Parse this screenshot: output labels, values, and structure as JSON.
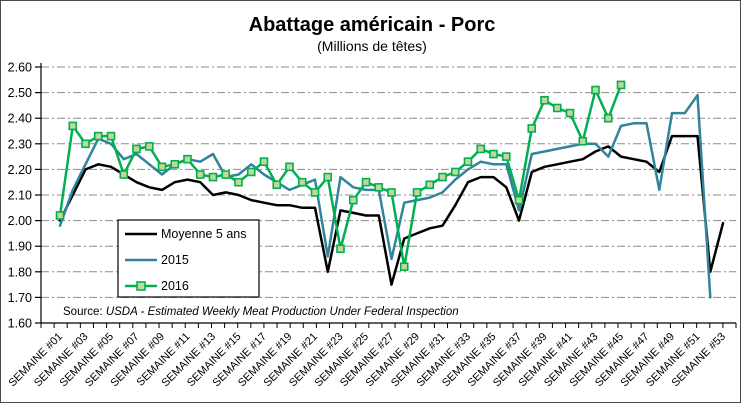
{
  "title": "Abattage américain - Porc",
  "subtitle": "(Millions de têtes)",
  "source": {
    "prefix": "Source: ",
    "text": "USDA - Estimated Weekly Meat Production Under Federal Inspection"
  },
  "colors": {
    "average": "#000000",
    "y2015": "#31849B",
    "y2016": "#00B050",
    "marker_fill": "#C3D69B",
    "grid": "#8C8C8C",
    "axis": "#000000",
    "legend_border": "#000000",
    "background": "#FFFFFF"
  },
  "chart_data": {
    "type": "line",
    "title": "Abattage américain - Porc",
    "subtitle": "(Millions de têtes)",
    "ylim": [
      1.6,
      2.6
    ],
    "y_tick_step": 0.1,
    "n_points": 53,
    "grid": "horizontal dash-dot",
    "legend_position": "inside left",
    "x_tick_labels": [
      "SEMAINE #01",
      "SEMAINE #03",
      "SEMAINE #05",
      "SEMAINE #07",
      "SEMAINE #09",
      "SEMAINE #11",
      "SEMAINE #13",
      "SEMAINE #15",
      "SEMAINE #17",
      "SEMAINE #19",
      "SEMAINE #21",
      "SEMAINE #23",
      "SEMAINE #25",
      "SEMAINE #27",
      "SEMAINE #29",
      "SEMAINE #31",
      "SEMAINE #33",
      "SEMAINE #35",
      "SEMAINE #37",
      "SEMAINE #39",
      "SEMAINE #41",
      "SEMAINE #43",
      "SEMAINE #45",
      "SEMAINE #47",
      "SEMAINE #49",
      "SEMAINE #51",
      "SEMAINE #53"
    ],
    "series": [
      {
        "name": "Moyenne 5 ans",
        "color": "#000000",
        "marker": "none",
        "values": [
          2.0,
          2.1,
          2.2,
          2.22,
          2.21,
          2.18,
          2.15,
          2.13,
          2.12,
          2.15,
          2.16,
          2.15,
          2.1,
          2.11,
          2.1,
          2.08,
          2.07,
          2.06,
          2.06,
          2.05,
          2.05,
          1.8,
          2.04,
          2.03,
          2.02,
          2.02,
          1.75,
          1.93,
          1.95,
          1.97,
          1.98,
          2.06,
          2.15,
          2.17,
          2.17,
          2.13,
          2.0,
          2.19,
          2.21,
          2.22,
          2.23,
          2.24,
          2.27,
          2.29,
          2.25,
          2.24,
          2.23,
          2.19,
          2.33,
          2.33,
          2.33,
          1.8,
          1.99
        ]
      },
      {
        "name": "2015",
        "color": "#31849B",
        "marker": "none",
        "values": [
          1.98,
          2.12,
          2.22,
          2.32,
          2.3,
          2.24,
          2.26,
          2.22,
          2.18,
          2.22,
          2.24,
          2.23,
          2.26,
          2.17,
          2.18,
          2.22,
          2.18,
          2.15,
          2.12,
          2.14,
          2.16,
          1.86,
          2.17,
          2.13,
          2.12,
          2.12,
          1.85,
          2.07,
          2.08,
          2.09,
          2.11,
          2.16,
          2.2,
          2.23,
          2.22,
          2.22,
          2.04,
          2.26,
          2.27,
          2.28,
          2.29,
          2.3,
          2.3,
          2.25,
          2.37,
          2.38,
          2.38,
          2.12,
          2.42,
          2.42,
          2.49,
          1.7
        ]
      },
      {
        "name": "2016",
        "color": "#00B050",
        "marker": "square",
        "marker_fill": "#C3D69B",
        "values": [
          2.02,
          2.37,
          2.3,
          2.33,
          2.33,
          2.18,
          2.28,
          2.29,
          2.21,
          2.22,
          2.24,
          2.18,
          2.17,
          2.18,
          2.15,
          2.19,
          2.23,
          2.14,
          2.21,
          2.15,
          2.11,
          2.17,
          1.89,
          2.08,
          2.15,
          2.13,
          2.11,
          1.82,
          2.11,
          2.14,
          2.17,
          2.19,
          2.23,
          2.28,
          2.26,
          2.25,
          2.08,
          2.36,
          2.47,
          2.44,
          2.42,
          2.31,
          2.51,
          2.4,
          2.53
        ]
      }
    ]
  }
}
